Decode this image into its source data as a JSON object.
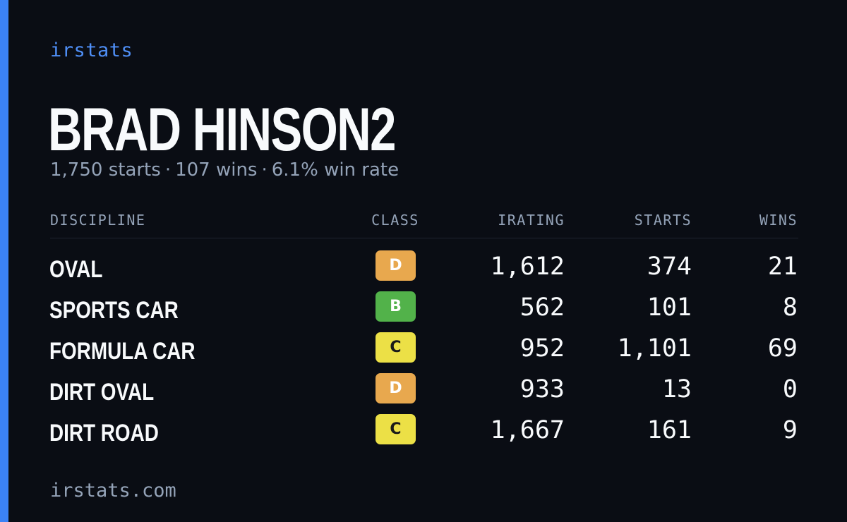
{
  "brand": "irstats",
  "driver": {
    "name": "BRAD HINSON2",
    "starts": "1,750 starts",
    "wins": "107 wins",
    "win_rate": "6.1% win rate",
    "separator": "·"
  },
  "table": {
    "headers": {
      "discipline": "DISCIPLINE",
      "class": "CLASS",
      "irating": "IRATING",
      "starts": "STARTS",
      "wins": "WINS"
    },
    "rows": [
      {
        "discipline": "OVAL",
        "class": "D",
        "irating": "1,612",
        "starts": "374",
        "wins": "21"
      },
      {
        "discipline": "SPORTS CAR",
        "class": "B",
        "irating": "562",
        "starts": "101",
        "wins": "8"
      },
      {
        "discipline": "FORMULA CAR",
        "class": "C",
        "irating": "952",
        "starts": "1,101",
        "wins": "69"
      },
      {
        "discipline": "DIRT OVAL",
        "class": "D",
        "irating": "933",
        "starts": "13",
        "wins": "0"
      },
      {
        "discipline": "DIRT ROAD",
        "class": "C",
        "irating": "1,667",
        "starts": "161",
        "wins": "9"
      }
    ]
  },
  "class_colors": {
    "B": "#52b24a",
    "C": "#ece046",
    "D": "#e8a84e"
  },
  "accent_color": "#3b82f6",
  "footer": "irstats.com"
}
